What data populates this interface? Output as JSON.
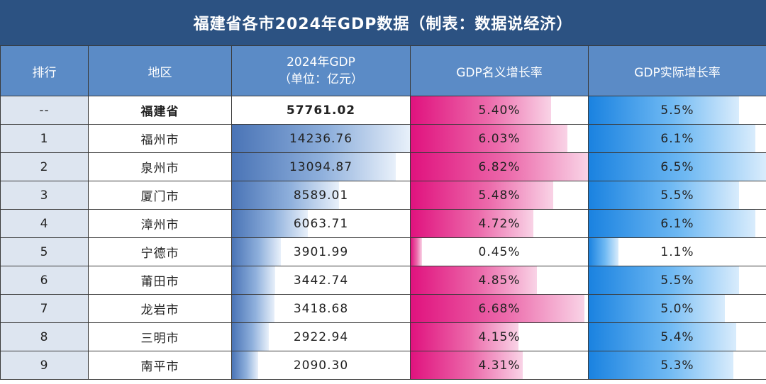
{
  "title": "福建省各市2024年GDP数据（制表：数据说经济）",
  "headers": {
    "rank": "排行",
    "region": "地区",
    "gdp_line1": "2024年GDP",
    "gdp_line2": "（单位：亿元）",
    "nominal": "GDP名义增长率",
    "real": "GDP实际增长率"
  },
  "rows": [
    {
      "rank": "--",
      "region": "福建省",
      "gdp": "57761.02",
      "nominal": "5.40%",
      "real": "5.5%",
      "gdp_value": 57761.02,
      "nominal_value": 5.4,
      "real_value": 5.5,
      "is_total": true
    },
    {
      "rank": "1",
      "region": "福州市",
      "gdp": "14236.76",
      "nominal": "6.03%",
      "real": "6.1%",
      "gdp_value": 14236.76,
      "nominal_value": 6.03,
      "real_value": 6.1
    },
    {
      "rank": "2",
      "region": "泉州市",
      "gdp": "13094.87",
      "nominal": "6.82%",
      "real": "6.5%",
      "gdp_value": 13094.87,
      "nominal_value": 6.82,
      "real_value": 6.5
    },
    {
      "rank": "3",
      "region": "厦门市",
      "gdp": "8589.01",
      "nominal": "5.48%",
      "real": "5.5%",
      "gdp_value": 8589.01,
      "nominal_value": 5.48,
      "real_value": 5.5
    },
    {
      "rank": "4",
      "region": "漳州市",
      "gdp": "6063.71",
      "nominal": "4.72%",
      "real": "6.1%",
      "gdp_value": 6063.71,
      "nominal_value": 4.72,
      "real_value": 6.1
    },
    {
      "rank": "5",
      "region": "宁德市",
      "gdp": "3901.99",
      "nominal": "0.45%",
      "real": "1.1%",
      "gdp_value": 3901.99,
      "nominal_value": 0.45,
      "real_value": 1.1
    },
    {
      "rank": "6",
      "region": "莆田市",
      "gdp": "3442.74",
      "nominal": "4.85%",
      "real": "5.5%",
      "gdp_value": 3442.74,
      "nominal_value": 4.85,
      "real_value": 5.5
    },
    {
      "rank": "7",
      "region": "龙岩市",
      "gdp": "3418.68",
      "nominal": "6.68%",
      "real": "5.0%",
      "gdp_value": 3418.68,
      "nominal_value": 6.68,
      "real_value": 5.0
    },
    {
      "rank": "8",
      "region": "三明市",
      "gdp": "2922.94",
      "nominal": "4.15%",
      "real": "5.4%",
      "gdp_value": 2922.94,
      "nominal_value": 4.15,
      "real_value": 5.4
    },
    {
      "rank": "9",
      "region": "南平市",
      "gdp": "2090.30",
      "nominal": "4.31%",
      "real": "5.3%",
      "gdp_value": 2090.3,
      "nominal_value": 4.31,
      "real_value": 5.3
    }
  ],
  "colors": {
    "title_bg": "#2c5282",
    "header_bg": "#5b8bc6",
    "gdp_bar": "#4a74b6",
    "nominal_bar": "#e0127e",
    "real_bar": "#1a82e0"
  }
}
